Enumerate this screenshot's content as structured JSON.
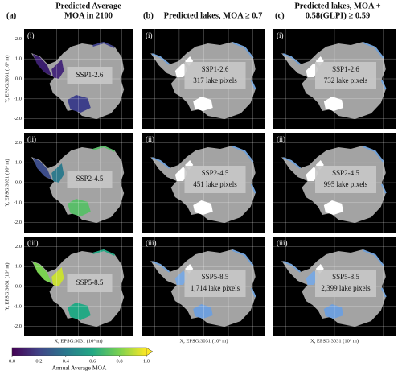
{
  "columns": [
    {
      "label": "(a)",
      "title": [
        "Predicted Average",
        "MOA in 2100"
      ]
    },
    {
      "label": "(b)",
      "title": [
        "Predicted lakes, MOA ≥ 0.7"
      ]
    },
    {
      "label": "(c)",
      "title": [
        "Predicted lakes, MOA +",
        "0.58(GLPI) ≥ 0.59"
      ]
    }
  ],
  "rows": [
    {
      "label": "(i)",
      "scenario": "SSP1-2.6",
      "lake_pixels": [
        "317 lake pixels",
        "732 lake pixels"
      ]
    },
    {
      "label": "(ii)",
      "scenario": "SSP2-4.5",
      "lake_pixels": [
        "451 lake pixels",
        "995 lake pixels"
      ]
    },
    {
      "label": "(iii)",
      "scenario": "SSP5-8.5",
      "lake_pixels": [
        "1,714 lake pixels",
        "2,399 lake pixels"
      ]
    }
  ],
  "y_axis": {
    "label": "Y, EPSG:3031 (10⁶ m)",
    "ylim": [
      -2.5,
      2.5
    ],
    "yticks": [
      {
        "value": 2,
        "label": "2.0"
      },
      {
        "value": 1,
        "label": "1.0"
      },
      {
        "value": 0,
        "label": "0.0"
      },
      {
        "value": -1,
        "label": "-1.0"
      },
      {
        "value": -2,
        "label": "-2.0"
      }
    ]
  },
  "x_axis": {
    "label": "X, EPSG:3031 (10⁶ m)"
  },
  "colorbar": {
    "label": "Annual Average MOA",
    "lim": [
      0,
      1
    ],
    "ticks": [
      {
        "value": 0,
        "label": "0.0"
      },
      {
        "value": 0.2,
        "label": "0.2"
      },
      {
        "value": 0.4,
        "label": "0.4"
      },
      {
        "value": 0.6,
        "label": "0.6"
      },
      {
        "value": 0.8,
        "label": "0.8"
      },
      {
        "value": 1,
        "label": "1.0"
      }
    ],
    "colors": [
      "#440154",
      "#414487",
      "#2a788e",
      "#22a884",
      "#7ad151",
      "#fde725"
    ]
  }
}
